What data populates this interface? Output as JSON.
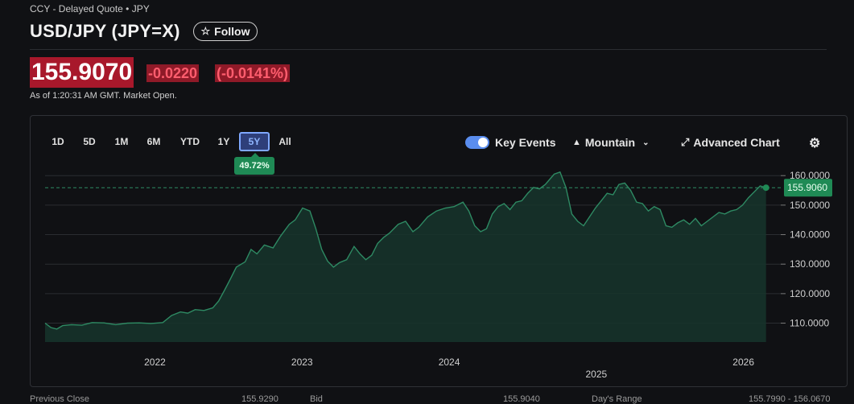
{
  "header": {
    "meta": "CCY - Delayed Quote • JPY",
    "title": "USD/JPY (JPY=X)",
    "follow_label": "Follow"
  },
  "quote": {
    "price": "155.9070",
    "change": "-0.0220",
    "change_pct": "(-0.0141%)",
    "as_of": "As of 1:20:31 AM GMT. Market Open."
  },
  "ranges": [
    "1D",
    "5D",
    "1M",
    "6M",
    "YTD",
    "1Y",
    "5Y",
    "All"
  ],
  "active_range": "5Y",
  "range_change": "49.72%",
  "controls": {
    "key_events": "Key Events",
    "chart_type": "Mountain",
    "advanced_chart": "Advanced Chart"
  },
  "colors": {
    "line": "#2e8a63",
    "fill": "#16352b",
    "marker": "#1f8a55",
    "negative_bg": "#a8182b"
  },
  "chart_data": {
    "type": "area",
    "title": "",
    "xlabel": "",
    "ylabel": "",
    "ylim": [
      103.6,
      163.6
    ],
    "xlim": [
      2021.0,
      2026.0
    ],
    "y_ticks": [
      "160.0000",
      "150.0000",
      "140.0000",
      "130.0000",
      "120.0000",
      "110.0000"
    ],
    "x_ticks": [
      {
        "label": "2022",
        "x": 2021.75
      },
      {
        "label": "2023",
        "x": 2022.75
      },
      {
        "label": "2024",
        "x": 2023.75
      },
      {
        "label": "2025",
        "x": 2024.75
      },
      {
        "label": "2026",
        "x": 2025.75
      }
    ],
    "last_value_label": "155.9060",
    "last_value": 155.906,
    "series": [
      {
        "values": [
          [
            2021.0,
            110.0
          ],
          [
            2021.04,
            108.5
          ],
          [
            2021.08,
            108.0
          ],
          [
            2021.12,
            109.2
          ],
          [
            2021.18,
            109.5
          ],
          [
            2021.25,
            109.3
          ],
          [
            2021.32,
            110.2
          ],
          [
            2021.4,
            110.1
          ],
          [
            2021.48,
            109.5
          ],
          [
            2021.56,
            110.0
          ],
          [
            2021.64,
            110.1
          ],
          [
            2021.72,
            109.9
          ],
          [
            2021.8,
            110.2
          ],
          [
            2021.86,
            112.6
          ],
          [
            2021.92,
            113.8
          ],
          [
            2021.97,
            113.4
          ],
          [
            2022.02,
            114.6
          ],
          [
            2022.08,
            114.3
          ],
          [
            2022.14,
            115.2
          ],
          [
            2022.18,
            117.5
          ],
          [
            2022.22,
            121.2
          ],
          [
            2022.26,
            125.0
          ],
          [
            2022.3,
            129.0
          ],
          [
            2022.36,
            130.8
          ],
          [
            2022.4,
            135.0
          ],
          [
            2022.44,
            133.5
          ],
          [
            2022.49,
            136.5
          ],
          [
            2022.55,
            135.5
          ],
          [
            2022.6,
            139.5
          ],
          [
            2022.66,
            143.5
          ],
          [
            2022.7,
            145.0
          ],
          [
            2022.75,
            149.0
          ],
          [
            2022.8,
            148.0
          ],
          [
            2022.84,
            142.0
          ],
          [
            2022.88,
            135.0
          ],
          [
            2022.92,
            131.0
          ],
          [
            2022.96,
            129.0
          ],
          [
            2023.0,
            130.5
          ],
          [
            2023.05,
            131.5
          ],
          [
            2023.1,
            136.0
          ],
          [
            2023.14,
            133.5
          ],
          [
            2023.18,
            131.5
          ],
          [
            2023.22,
            133.0
          ],
          [
            2023.26,
            137.0
          ],
          [
            2023.3,
            139.0
          ],
          [
            2023.34,
            140.5
          ],
          [
            2023.4,
            143.5
          ],
          [
            2023.45,
            144.5
          ],
          [
            2023.5,
            141.0
          ],
          [
            2023.54,
            142.5
          ],
          [
            2023.6,
            146.0
          ],
          [
            2023.66,
            148.0
          ],
          [
            2023.72,
            149.0
          ],
          [
            2023.78,
            149.5
          ],
          [
            2023.84,
            151.0
          ],
          [
            2023.88,
            148.0
          ],
          [
            2023.92,
            143.0
          ],
          [
            2023.96,
            141.0
          ],
          [
            2024.0,
            142.0
          ],
          [
            2024.04,
            147.0
          ],
          [
            2024.08,
            149.5
          ],
          [
            2024.12,
            150.5
          ],
          [
            2024.16,
            148.5
          ],
          [
            2024.2,
            151.0
          ],
          [
            2024.24,
            151.5
          ],
          [
            2024.28,
            154.0
          ],
          [
            2024.32,
            156.0
          ],
          [
            2024.36,
            155.5
          ],
          [
            2024.4,
            157.0
          ],
          [
            2024.46,
            160.5
          ],
          [
            2024.5,
            161.2
          ],
          [
            2024.54,
            156.0
          ],
          [
            2024.58,
            147.0
          ],
          [
            2024.62,
            144.5
          ],
          [
            2024.66,
            143.0
          ],
          [
            2024.7,
            146.0
          ],
          [
            2024.74,
            149.0
          ],
          [
            2024.78,
            151.5
          ],
          [
            2024.82,
            154.0
          ],
          [
            2024.86,
            153.5
          ],
          [
            2024.9,
            157.0
          ],
          [
            2024.94,
            157.5
          ],
          [
            2024.98,
            155.0
          ],
          [
            2025.02,
            151.0
          ],
          [
            2025.06,
            150.5
          ],
          [
            2025.1,
            148.0
          ],
          [
            2025.14,
            149.5
          ],
          [
            2025.18,
            148.5
          ],
          [
            2025.22,
            143.0
          ],
          [
            2025.26,
            142.5
          ],
          [
            2025.3,
            144.0
          ],
          [
            2025.34,
            145.0
          ],
          [
            2025.38,
            143.5
          ],
          [
            2025.42,
            145.5
          ],
          [
            2025.46,
            143.0
          ],
          [
            2025.5,
            144.5
          ],
          [
            2025.54,
            146.0
          ],
          [
            2025.58,
            147.5
          ],
          [
            2025.62,
            147.0
          ],
          [
            2025.66,
            148.0
          ],
          [
            2025.7,
            148.5
          ],
          [
            2025.74,
            150.0
          ],
          [
            2025.78,
            152.5
          ],
          [
            2025.82,
            154.5
          ],
          [
            2025.86,
            156.5
          ],
          [
            2025.9,
            155.9
          ]
        ]
      }
    ]
  },
  "bottom_row": [
    "Previous Close",
    "155.9290",
    "Bid",
    "155.9040",
    "Day's Range",
    "155.7990 - 156.0670"
  ]
}
